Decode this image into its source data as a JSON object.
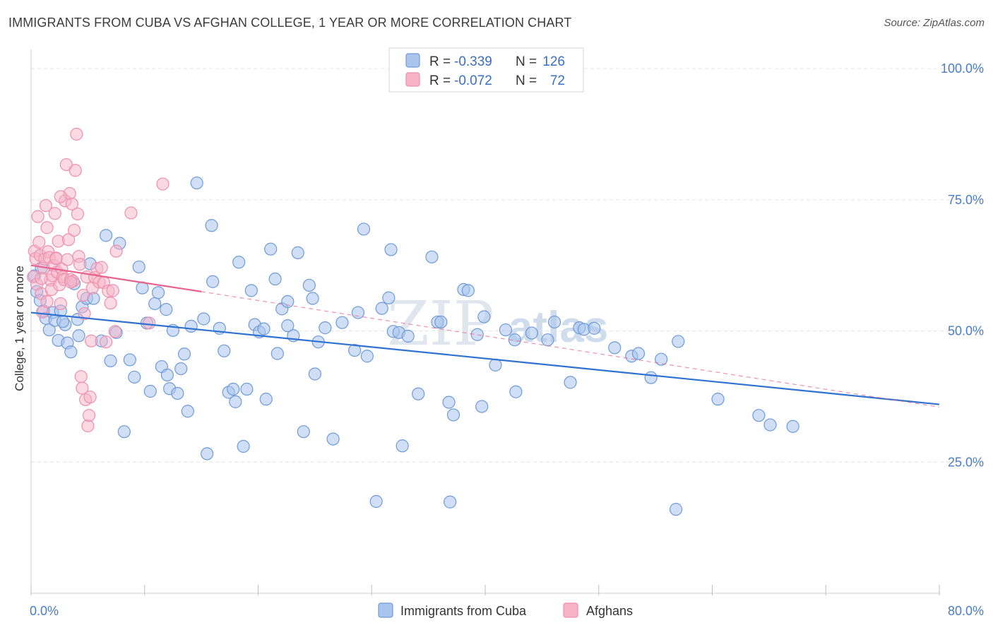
{
  "header": {
    "title": "IMMIGRANTS FROM CUBA VS AFGHAN COLLEGE, 1 YEAR OR MORE CORRELATION CHART",
    "source": "Source: ZipAtlas.com"
  },
  "watermark": {
    "zip": "ZIP",
    "atlas": "atlas"
  },
  "stats": {
    "cuba": {
      "r_label": "R =",
      "r_value": "-0.339",
      "n_label": "N =",
      "n_value": "126"
    },
    "afghan": {
      "r_label": "R =",
      "r_value": "-0.072",
      "n_label": "N =",
      "n_value": "72"
    }
  },
  "colors": {
    "cuba_fill": "#a9c5ee",
    "cuba_stroke": "#6e9bd8",
    "cuba_line": "#2f72d0",
    "afghan_fill": "#f6b3c8",
    "afghan_stroke": "#ee8fae",
    "afghan_line": "#e8628d",
    "tick_text": "#4a7cc7",
    "grid": "#e3e3e3",
    "stat_value": "#3a6fc4"
  },
  "chart_data": {
    "type": "scatter",
    "title": "IMMIGRANTS FROM CUBA VS AFGHAN COLLEGE, 1 YEAR OR MORE CORRELATION CHART",
    "xlabel": "",
    "ylabel": "College, 1 year or more",
    "xlim": [
      0,
      80
    ],
    "ylim": [
      0,
      105
    ],
    "x_tick_labels": [
      "0.0%",
      "80.0%"
    ],
    "y_ticks": [
      25,
      50,
      75,
      100
    ],
    "y_tick_labels": [
      "25.0%",
      "50.0%",
      "75.0%",
      "100.0%"
    ],
    "grid": true,
    "legend_position": "bottom-center",
    "series": [
      {
        "name": "Immigrants from Cuba",
        "color": "#a9c5ee",
        "trend": {
          "x": [
            0,
            80
          ],
          "y": [
            53.5,
            36.0
          ]
        },
        "points": [
          [
            0.3,
            60.5
          ],
          [
            0.5,
            57.5
          ],
          [
            0.8,
            55.8
          ],
          [
            0.9,
            62.0
          ],
          [
            1.1,
            53.8
          ],
          [
            1.3,
            52.4
          ],
          [
            1.6,
            50.2
          ],
          [
            1.9,
            53.5
          ],
          [
            2.1,
            52.0
          ],
          [
            2.4,
            48.2
          ],
          [
            2.6,
            53.8
          ],
          [
            3.0,
            51.2
          ],
          [
            3.2,
            47.7
          ],
          [
            3.5,
            46.0
          ],
          [
            3.8,
            59.0
          ],
          [
            4.1,
            52.2
          ],
          [
            4.5,
            54.6
          ],
          [
            4.9,
            56.2
          ],
          [
            5.2,
            62.8
          ],
          [
            5.5,
            56.2
          ],
          [
            6.2,
            48.1
          ],
          [
            6.6,
            68.2
          ],
          [
            7.0,
            44.3
          ],
          [
            7.5,
            49.7
          ],
          [
            7.8,
            66.7
          ],
          [
            8.2,
            30.8
          ],
          [
            8.7,
            44.5
          ],
          [
            9.1,
            41.2
          ],
          [
            9.5,
            62.2
          ],
          [
            9.8,
            58.2
          ],
          [
            10.2,
            51.5
          ],
          [
            10.5,
            38.5
          ],
          [
            10.9,
            55.2
          ],
          [
            11.2,
            57.3
          ],
          [
            11.5,
            43.2
          ],
          [
            11.9,
            54.1
          ],
          [
            12.2,
            39.0
          ],
          [
            12.5,
            50.1
          ],
          [
            12.9,
            38.1
          ],
          [
            13.2,
            42.8
          ],
          [
            13.5,
            45.6
          ],
          [
            13.8,
            34.7
          ],
          [
            14.1,
            50.9
          ],
          [
            14.6,
            78.2
          ],
          [
            15.2,
            52.3
          ],
          [
            15.5,
            26.6
          ],
          [
            15.9,
            70.1
          ],
          [
            16.0,
            59.4
          ],
          [
            16.6,
            50.5
          ],
          [
            17.0,
            46.2
          ],
          [
            17.4,
            38.3
          ],
          [
            17.8,
            38.9
          ],
          [
            18.0,
            36.5
          ],
          [
            18.3,
            63.1
          ],
          [
            18.7,
            28.0
          ],
          [
            19.0,
            38.9
          ],
          [
            19.4,
            57.7
          ],
          [
            19.7,
            51.2
          ],
          [
            20.1,
            49.8
          ],
          [
            20.5,
            50.4
          ],
          [
            20.7,
            37.0
          ],
          [
            21.1,
            65.6
          ],
          [
            21.5,
            59.9
          ],
          [
            21.7,
            45.7
          ],
          [
            22.1,
            54.2
          ],
          [
            22.6,
            55.6
          ],
          [
            23.1,
            49.1
          ],
          [
            23.5,
            64.9
          ],
          [
            24.0,
            30.8
          ],
          [
            24.5,
            58.7
          ],
          [
            24.8,
            56.2
          ],
          [
            25.0,
            41.8
          ],
          [
            25.3,
            47.9
          ],
          [
            25.9,
            50.6
          ],
          [
            26.6,
            29.4
          ],
          [
            27.4,
            51.6
          ],
          [
            28.5,
            46.3
          ],
          [
            28.8,
            53.5
          ],
          [
            29.3,
            69.4
          ],
          [
            29.6,
            45.2
          ],
          [
            30.9,
            54.3
          ],
          [
            31.5,
            56.3
          ],
          [
            31.7,
            65.5
          ],
          [
            31.9,
            49.9
          ],
          [
            32.4,
            49.7
          ],
          [
            32.7,
            28.1
          ],
          [
            33.2,
            49.0
          ],
          [
            34.1,
            38.0
          ],
          [
            35.3,
            64.1
          ],
          [
            35.8,
            51.7
          ],
          [
            36.1,
            51.7
          ],
          [
            36.8,
            36.4
          ],
          [
            36.9,
            17.4
          ],
          [
            37.2,
            34.0
          ],
          [
            38.1,
            57.9
          ],
          [
            38.5,
            57.7
          ],
          [
            39.3,
            49.3
          ],
          [
            39.7,
            35.6
          ],
          [
            39.9,
            52.7
          ],
          [
            40.9,
            43.5
          ],
          [
            41.8,
            50.2
          ],
          [
            42.6,
            48.3
          ],
          [
            42.7,
            38.4
          ],
          [
            44.1,
            49.6
          ],
          [
            45.5,
            48.3
          ],
          [
            46.1,
            51.7
          ],
          [
            47.5,
            40.2
          ],
          [
            48.3,
            50.6
          ],
          [
            48.7,
            50.3
          ],
          [
            49.6,
            50.5
          ],
          [
            51.4,
            46.8
          ],
          [
            52.9,
            45.2
          ],
          [
            53.5,
            45.7
          ],
          [
            54.6,
            41.1
          ],
          [
            55.5,
            44.6
          ],
          [
            56.8,
            16.0
          ],
          [
            57.0,
            48.0
          ],
          [
            60.5,
            37.0
          ],
          [
            64.1,
            33.9
          ],
          [
            65.1,
            32.1
          ],
          [
            67.1,
            31.8
          ],
          [
            30.4,
            17.5
          ],
          [
            22.6,
            51.0
          ],
          [
            4.2,
            49.1
          ],
          [
            12.0,
            41.6
          ],
          [
            2.8,
            51.8
          ]
        ]
      },
      {
        "name": "Afghans",
        "color": "#f6b3c8",
        "trend": {
          "x": [
            0,
            15
          ],
          "y": [
            62.5,
            57.5
          ]
        },
        "trend_extension": {
          "x": [
            15,
            80
          ],
          "y": [
            57.5,
            35.5
          ]
        },
        "points": [
          [
            0.2,
            60.3
          ],
          [
            0.3,
            65.2
          ],
          [
            0.4,
            63.8
          ],
          [
            0.5,
            58.9
          ],
          [
            0.6,
            71.8
          ],
          [
            0.7,
            66.9
          ],
          [
            0.8,
            64.4
          ],
          [
            0.9,
            57.1
          ],
          [
            1.0,
            53.6
          ],
          [
            1.1,
            62.0
          ],
          [
            1.2,
            63.7
          ],
          [
            1.3,
            73.9
          ],
          [
            1.4,
            69.7
          ],
          [
            1.5,
            65.1
          ],
          [
            1.6,
            64.0
          ],
          [
            1.7,
            59.7
          ],
          [
            1.8,
            57.9
          ],
          [
            1.9,
            60.5
          ],
          [
            2.0,
            62.5
          ],
          [
            2.1,
            72.4
          ],
          [
            2.2,
            63.9
          ],
          [
            2.3,
            61.2
          ],
          [
            2.4,
            67.1
          ],
          [
            2.5,
            58.8
          ],
          [
            2.6,
            55.2
          ],
          [
            2.7,
            61.8
          ],
          [
            2.8,
            60.3
          ],
          [
            2.9,
            59.8
          ],
          [
            3.0,
            74.8
          ],
          [
            3.1,
            81.7
          ],
          [
            3.2,
            63.6
          ],
          [
            3.3,
            67.4
          ],
          [
            3.4,
            76.2
          ],
          [
            3.5,
            59.8
          ],
          [
            3.6,
            74.2
          ],
          [
            3.7,
            59.5
          ],
          [
            3.8,
            69.2
          ],
          [
            3.9,
            80.6
          ],
          [
            4.0,
            87.5
          ],
          [
            4.1,
            72.3
          ],
          [
            4.2,
            64.2
          ],
          [
            4.3,
            62.7
          ],
          [
            4.4,
            41.3
          ],
          [
            4.5,
            39.1
          ],
          [
            4.6,
            56.8
          ],
          [
            4.7,
            53.3
          ],
          [
            4.8,
            36.9
          ],
          [
            4.9,
            60.3
          ],
          [
            5.0,
            31.9
          ],
          [
            5.1,
            33.9
          ],
          [
            5.2,
            37.4
          ],
          [
            5.4,
            58.2
          ],
          [
            5.6,
            60.2
          ],
          [
            5.8,
            61.9
          ],
          [
            6.0,
            59.3
          ],
          [
            6.2,
            62.1
          ],
          [
            6.4,
            59.2
          ],
          [
            6.6,
            47.9
          ],
          [
            6.8,
            57.6
          ],
          [
            7.0,
            55.3
          ],
          [
            7.2,
            57.7
          ],
          [
            7.4,
            49.9
          ],
          [
            8.8,
            72.5
          ],
          [
            10.4,
            51.5
          ],
          [
            11.6,
            78.0
          ],
          [
            7.5,
            65.2
          ],
          [
            2.6,
            75.6
          ],
          [
            1.4,
            55.6
          ],
          [
            3.5,
            59.3
          ],
          [
            2.2,
            63.8
          ],
          [
            0.9,
            60.0
          ],
          [
            5.3,
            48.1
          ]
        ]
      }
    ]
  },
  "legend": {
    "items": [
      {
        "label": "Immigrants from Cuba"
      },
      {
        "label": "Afghans"
      }
    ]
  }
}
